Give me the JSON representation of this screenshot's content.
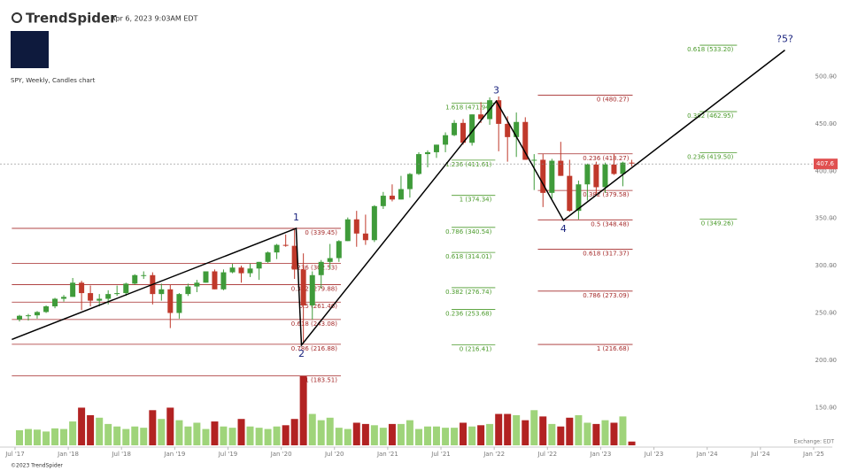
{
  "header": {
    "brand": "TrendSpider",
    "timestamp": "Apr 6, 2023 9:03AM EDT",
    "chart_label": "SPY, Weekly, Candles chart"
  },
  "footer": {
    "copyright": "©2023 TrendSpider",
    "exchange": "Exchange: EDT"
  },
  "chart_data": {
    "type": "candlestick",
    "xlim": [
      2017.359,
      2025.175
    ],
    "ylim": [
      110,
      581
    ],
    "xticks": [
      {
        "value": 2017.5,
        "label": "Jul '17"
      },
      {
        "value": 2018.0,
        "label": "Jan '18"
      },
      {
        "value": 2018.5,
        "label": "Jul '18"
      },
      {
        "value": 2019.0,
        "label": "Jan '19"
      },
      {
        "value": 2019.5,
        "label": "Jul '19"
      },
      {
        "value": 2020.0,
        "label": "Jan '20"
      },
      {
        "value": 2020.5,
        "label": "Jul '20"
      },
      {
        "value": 2021.0,
        "label": "Jan '21"
      },
      {
        "value": 2021.5,
        "label": "Jul '21"
      },
      {
        "value": 2022.0,
        "label": "Jan '22"
      },
      {
        "value": 2022.5,
        "label": "Jul '22"
      },
      {
        "value": 2023.0,
        "label": "Jan '23"
      },
      {
        "value": 2023.5,
        "label": "Jul '23"
      },
      {
        "value": 2024.0,
        "label": "Jan '24"
      },
      {
        "value": 2024.5,
        "label": "Jul '24"
      },
      {
        "value": 2025.0,
        "label": "Jan '25"
      }
    ],
    "yticks": [
      {
        "value": 150,
        "label": "150.00"
      },
      {
        "value": 200,
        "label": "200.00"
      },
      {
        "value": 250,
        "label": "250.00"
      },
      {
        "value": 300,
        "label": "300.00"
      },
      {
        "value": 350,
        "label": "350.00"
      },
      {
        "value": 400,
        "label": "400.00"
      },
      {
        "value": 450,
        "label": "450.00"
      },
      {
        "value": 500,
        "label": "500.00"
      }
    ],
    "up_color": "#3f9b3a",
    "down_color": "#c0392b",
    "volume_up_color": "#9fd47a",
    "volume_down_color": "#b22222",
    "last_price": 407.6,
    "last_price_color": "#e05050",
    "x": [
      2017.542,
      2017.625,
      2017.708,
      2017.792,
      2017.875,
      2017.958,
      2018.042,
      2018.125,
      2018.208,
      2018.292,
      2018.375,
      2018.458,
      2018.542,
      2018.625,
      2018.708,
      2018.792,
      2018.875,
      2018.958,
      2019.042,
      2019.125,
      2019.208,
      2019.292,
      2019.375,
      2019.458,
      2019.542,
      2019.625,
      2019.708,
      2019.792,
      2019.875,
      2019.958,
      2020.042,
      2020.125,
      2020.208,
      2020.292,
      2020.375,
      2020.458,
      2020.542,
      2020.625,
      2020.708,
      2020.792,
      2020.875,
      2020.958,
      2021.042,
      2021.125,
      2021.208,
      2021.292,
      2021.375,
      2021.458,
      2021.542,
      2021.625,
      2021.708,
      2021.792,
      2021.875,
      2021.958,
      2022.042,
      2022.125,
      2022.208,
      2022.292,
      2022.375,
      2022.458,
      2022.542,
      2022.625,
      2022.708,
      2022.792,
      2022.875,
      2022.958,
      2023.042,
      2023.125,
      2023.208,
      2023.292
    ],
    "ohlc": [
      [
        243,
        248,
        241,
        247
      ],
      [
        247,
        249,
        242,
        247.5
      ],
      [
        247.5,
        252,
        244,
        251
      ],
      [
        251,
        258,
        250,
        257
      ],
      [
        257,
        266,
        255,
        265
      ],
      [
        265,
        269,
        262,
        267
      ],
      [
        267,
        287,
        267,
        282
      ],
      [
        282,
        284,
        253,
        271
      ],
      [
        271,
        279,
        257,
        263
      ],
      [
        263,
        270,
        257,
        265
      ],
      [
        265,
        274,
        259,
        270
      ],
      [
        270,
        279,
        268,
        271
      ],
      [
        271,
        282,
        268,
        281
      ],
      [
        281,
        291,
        280,
        290
      ],
      [
        290,
        294,
        286,
        290
      ],
      [
        290,
        293,
        259,
        270
      ],
      [
        270,
        281,
        263,
        275
      ],
      [
        275,
        280,
        234,
        250
      ],
      [
        250,
        271,
        244,
        270
      ],
      [
        270,
        281,
        268,
        278
      ],
      [
        278,
        285,
        272,
        282
      ],
      [
        282,
        294,
        282,
        294
      ],
      [
        294,
        296,
        275,
        275
      ],
      [
        275,
        296,
        274,
        293
      ],
      [
        293,
        302,
        292,
        298
      ],
      [
        298,
        300,
        282,
        292
      ],
      [
        292,
        302,
        288,
        297
      ],
      [
        297,
        304,
        285,
        304
      ],
      [
        304,
        315,
        303,
        314
      ],
      [
        314,
        323,
        307,
        322
      ],
      [
        322,
        333,
        320,
        321
      ],
      [
        321,
        339,
        286,
        296
      ],
      [
        296,
        313,
        218,
        258
      ],
      [
        258,
        294,
        243,
        290
      ],
      [
        290,
        306,
        276,
        304
      ],
      [
        304,
        323,
        296,
        308
      ],
      [
        308,
        327,
        304,
        326
      ],
      [
        326,
        351,
        326,
        349
      ],
      [
        349,
        358,
        320,
        334
      ],
      [
        334,
        354,
        322,
        327
      ],
      [
        327,
        364,
        325,
        363
      ],
      [
        363,
        378,
        360,
        374
      ],
      [
        374,
        386,
        368,
        370
      ],
      [
        370,
        395,
        370,
        381
      ],
      [
        381,
        398,
        372,
        397
      ],
      [
        397,
        420,
        396,
        418
      ],
      [
        418,
        422,
        404,
        420
      ],
      [
        420,
        428,
        414,
        428
      ],
      [
        428,
        441,
        420,
        438
      ],
      [
        438,
        454,
        437,
        451
      ],
      [
        451,
        455,
        428,
        430
      ],
      [
        430,
        460,
        427,
        460
      ],
      [
        460,
        473,
        451,
        455
      ],
      [
        455,
        478,
        449,
        475
      ],
      [
        475,
        479,
        421,
        450
      ],
      [
        450,
        458,
        410,
        436
      ],
      [
        436,
        462,
        415,
        452
      ],
      [
        452,
        457,
        412,
        412
      ],
      [
        412,
        418,
        380,
        412
      ],
      [
        412,
        418,
        362,
        377
      ],
      [
        377,
        413,
        371,
        411
      ],
      [
        411,
        431,
        395,
        395
      ],
      [
        395,
        412,
        357,
        358
      ],
      [
        358,
        390,
        349,
        386
      ],
      [
        386,
        408,
        369,
        407
      ],
      [
        407,
        410,
        374,
        383
      ],
      [
        383,
        409,
        377,
        407
      ],
      [
        407,
        418,
        396,
        397
      ],
      [
        397,
        410,
        384,
        409
      ],
      [
        409,
        412,
        405,
        408
      ]
    ],
    "volume": [
      1200,
      1300,
      1250,
      1100,
      1350,
      1300,
      1900,
      3000,
      2400,
      2200,
      1700,
      1500,
      1300,
      1500,
      1400,
      2800,
      2100,
      3000,
      2000,
      1500,
      1800,
      1300,
      1900,
      1500,
      1400,
      2100,
      1500,
      1400,
      1300,
      1500,
      1600,
      2100,
      5500,
      2500,
      2000,
      2200,
      1400,
      1300,
      1800,
      1700,
      1600,
      1400,
      1700,
      1700,
      2000,
      1300,
      1500,
      1500,
      1400,
      1400,
      1800,
      1500,
      1600,
      1700,
      2500,
      2500,
      2400,
      2000,
      2800,
      2300,
      1700,
      1500,
      2200,
      2400,
      1800,
      1700,
      2000,
      1800,
      2300,
      300
    ],
    "fib_groups": [
      {
        "color": "#a52a2a",
        "x_range": [
          2017.47,
          2020.56
        ],
        "levels": [
          {
            "label": "0 (339.45)",
            "value": 339.45
          },
          {
            "label": "0.236 (302.53)",
            "value": 302.53
          },
          {
            "label": "0.382 (279.88)",
            "value": 279.88
          },
          {
            "label": "0.5 (261.46)",
            "value": 261.46
          },
          {
            "label": "0.618 (243.08)",
            "value": 243.08
          },
          {
            "label": "0.786 (216.88)",
            "value": 216.88
          },
          {
            "label": "1 (183.51)",
            "value": 183.51
          }
        ]
      },
      {
        "color": "#4a9a2a",
        "x_range": [
          2021.6,
          2022.01
        ],
        "levels": [
          {
            "label": "1.618 (471.94)",
            "value": 471.94
          },
          {
            "label": "1.236 (411.61)",
            "value": 411.61
          },
          {
            "label": "1 (374.34)",
            "value": 374.34
          },
          {
            "label": "0.786 (340.54)",
            "value": 340.54
          },
          {
            "label": "0.618 (314.01)",
            "value": 314.01
          },
          {
            "label": "0.382 (276.74)",
            "value": 276.74
          },
          {
            "label": "0.236 (253.68)",
            "value": 253.68
          },
          {
            "label": "0 (216.41)",
            "value": 216.41
          }
        ]
      },
      {
        "color": "#a52a2a",
        "x_range": [
          2022.41,
          2023.3
        ],
        "levels": [
          {
            "label": "0 (480.27)",
            "value": 480.27
          },
          {
            "label": "0.236 (418.27)",
            "value": 418.27
          },
          {
            "label": "0.382 (379.58)",
            "value": 379.58
          },
          {
            "label": "0.5 (348.48)",
            "value": 348.48
          },
          {
            "label": "0.618 (317.37)",
            "value": 317.37
          },
          {
            "label": "0.786 (273.09)",
            "value": 273.09
          },
          {
            "label": "1 (216.68)",
            "value": 216.68
          }
        ]
      },
      {
        "color": "#4a9a2a",
        "x_range": [
          2023.93,
          2024.28
        ],
        "levels": [
          {
            "label": "0.618 (533.20)",
            "value": 533.2
          },
          {
            "label": "0.382 (462.95)",
            "value": 462.95
          },
          {
            "label": "0.236 (419.50)",
            "value": 419.5
          },
          {
            "label": "0 (349.26)",
            "value": 349.26
          }
        ]
      }
    ],
    "wave": {
      "color": "#000000",
      "label_color": "#1a237e",
      "x": [
        2017.47,
        2020.14,
        2020.19,
        2022.02,
        2022.65,
        2024.73
      ],
      "y": [
        222,
        339.45,
        216,
        474,
        348,
        528
      ],
      "labels": [
        null,
        "1",
        "2",
        "3",
        "4",
        "?5?"
      ]
    }
  }
}
